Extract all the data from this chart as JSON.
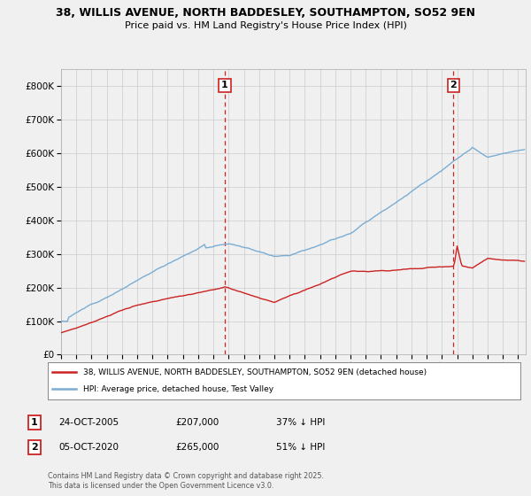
{
  "title_line1": "38, WILLIS AVENUE, NORTH BADDESLEY, SOUTHAMPTON, SO52 9EN",
  "title_line2": "Price paid vs. HM Land Registry's House Price Index (HPI)",
  "background_color": "#f0f0f0",
  "plot_background": "#f0f0f0",
  "grid_color": "#cccccc",
  "hpi_color": "#7aadd4",
  "price_color": "#cc2222",
  "legend_entries": [
    "38, WILLIS AVENUE, NORTH BADDESLEY, SOUTHAMPTON, SO52 9EN (detached house)",
    "HPI: Average price, detached house, Test Valley"
  ],
  "annotation1": [
    "1",
    "24-OCT-2005",
    "£207,000",
    "37% ↓ HPI"
  ],
  "annotation2": [
    "2",
    "05-OCT-2020",
    "£265,000",
    "51% ↓ HPI"
  ],
  "footer": "Contains HM Land Registry data © Crown copyright and database right 2025.\nThis data is licensed under the Open Government Licence v3.0.",
  "ylim": [
    0,
    850000
  ],
  "start_year": 1995,
  "end_year": 2025
}
